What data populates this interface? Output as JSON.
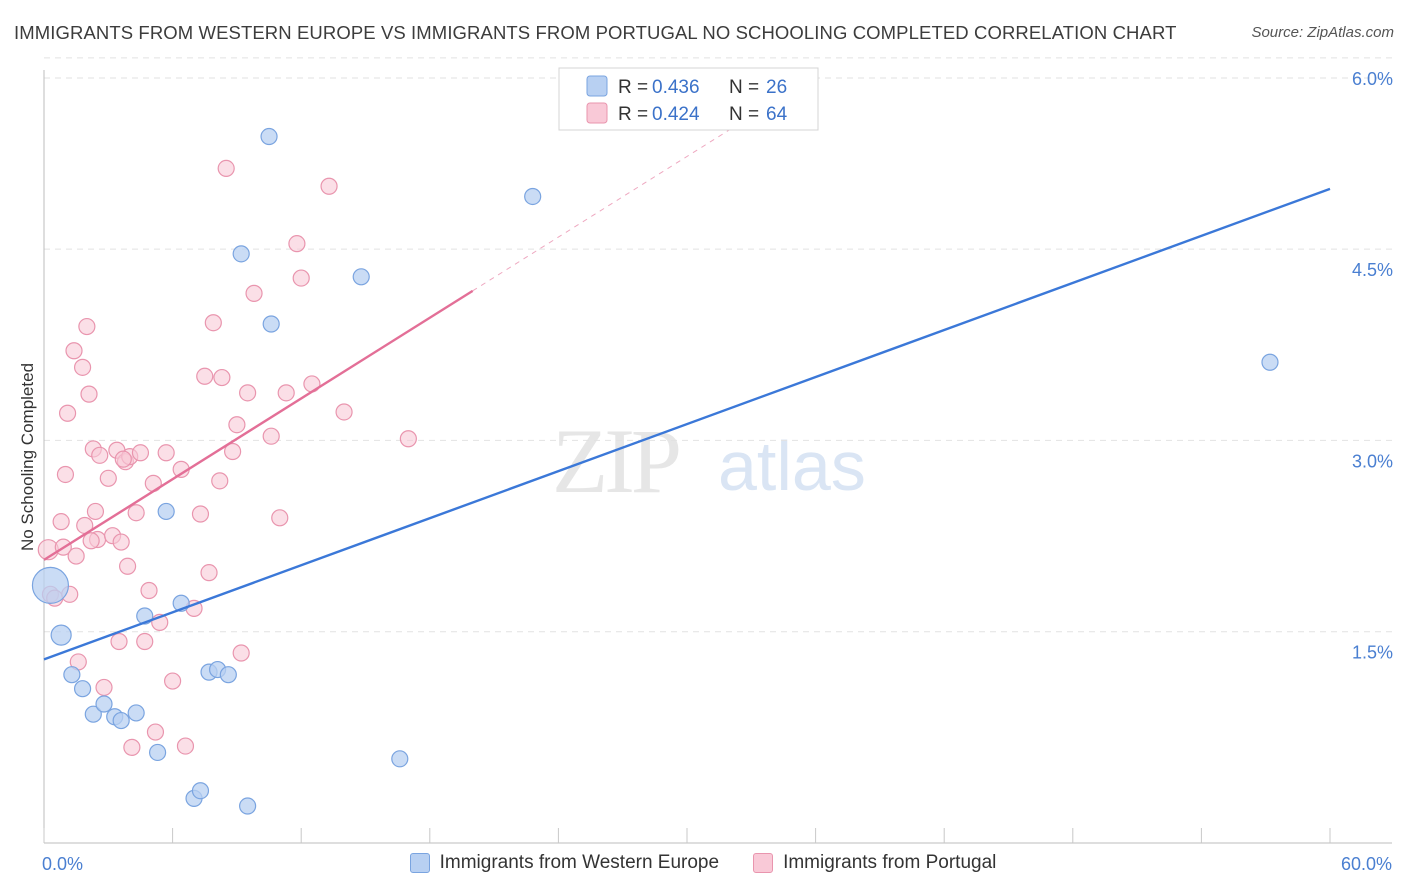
{
  "title": "IMMIGRANTS FROM WESTERN EUROPE VS IMMIGRANTS FROM PORTUGAL NO SCHOOLING COMPLETED CORRELATION CHART",
  "source": "Source: ZipAtlas.com",
  "watermark": {
    "zip": "ZIP",
    "atlas": "atlas"
  },
  "colors": {
    "blue": "#3b78d8",
    "pink": "#e36f97",
    "blue_fill": "#b8d0f2",
    "pink_fill": "#f9c9d7"
  },
  "legend": {
    "r_label": "R = ",
    "n_label": "N = ",
    "series": [
      {
        "r": "0.436",
        "n": "26"
      },
      {
        "r": "0.424",
        "n": "64"
      }
    ]
  },
  "chart_data": {
    "type": "scatter",
    "title": "IMMIGRANTS FROM WESTERN EUROPE VS IMMIGRANTS FROM PORTUGAL NO SCHOOLING COMPLETED CORRELATION CHART",
    "xlabel": "",
    "ylabel": "No Schooling Completed",
    "xlim": [
      0,
      60
    ],
    "ylim": [
      0,
      6.25
    ],
    "x_tick_labels": [
      "0.0%",
      "60.0%"
    ],
    "y_ticks": [
      {
        "value": 1.5,
        "label": "1.5%"
      },
      {
        "value": 3.0,
        "label": "3.0%"
      },
      {
        "value": 4.5,
        "label": "4.5%"
      },
      {
        "value": 6.0,
        "label": "6.0%"
      }
    ],
    "series": [
      {
        "name": "Immigrants from Western Europe",
        "color": "#3b78d8",
        "trend": {
          "x0": 0,
          "y0": 1.44,
          "x1": 60,
          "y1": 5.13,
          "dashed_to": null
        },
        "points": [
          [
            0.3,
            2.02,
            18
          ],
          [
            0.8,
            1.63,
            10
          ],
          [
            1.3,
            1.32,
            8
          ],
          [
            1.8,
            1.21,
            8
          ],
          [
            2.3,
            1.01,
            8
          ],
          [
            2.8,
            1.09,
            8
          ],
          [
            3.3,
            0.99,
            8
          ],
          [
            3.6,
            0.96,
            8
          ],
          [
            4.3,
            1.02,
            8
          ],
          [
            4.7,
            1.78,
            8
          ],
          [
            5.3,
            0.71,
            8
          ],
          [
            5.7,
            2.6,
            8
          ],
          [
            6.4,
            1.88,
            8
          ],
          [
            7.0,
            0.35,
            8
          ],
          [
            7.3,
            0.41,
            8
          ],
          [
            7.7,
            1.34,
            8
          ],
          [
            8.1,
            1.36,
            8
          ],
          [
            8.6,
            1.32,
            8
          ],
          [
            9.2,
            4.62,
            8
          ],
          [
            9.5,
            0.29,
            8
          ],
          [
            10.5,
            5.54,
            8
          ],
          [
            10.6,
            4.07,
            8
          ],
          [
            14.8,
            4.44,
            8
          ],
          [
            16.6,
            0.66,
            8
          ],
          [
            22.8,
            5.07,
            8
          ],
          [
            57.2,
            3.77,
            8
          ]
        ]
      },
      {
        "name": "Immigrants from Portugal",
        "color": "#e36f97",
        "trend": {
          "x0": 0,
          "y0": 2.22,
          "x1": 20,
          "y1": 4.33,
          "dashed_to": {
            "x": 33,
            "y": 5.7
          }
        },
        "points": [
          [
            0.2,
            2.3,
            10
          ],
          [
            0.3,
            1.95,
            8
          ],
          [
            0.5,
            1.92,
            8
          ],
          [
            0.8,
            2.52,
            8
          ],
          [
            0.9,
            2.32,
            8
          ],
          [
            1.0,
            2.89,
            8
          ],
          [
            1.1,
            3.37,
            8
          ],
          [
            1.2,
            1.95,
            8
          ],
          [
            1.4,
            3.86,
            8
          ],
          [
            1.5,
            2.25,
            8
          ],
          [
            1.6,
            1.42,
            8
          ],
          [
            1.8,
            3.73,
            8
          ],
          [
            1.9,
            2.49,
            8
          ],
          [
            2.0,
            4.05,
            8
          ],
          [
            2.1,
            3.52,
            8
          ],
          [
            2.3,
            3.09,
            8
          ],
          [
            2.4,
            2.6,
            8
          ],
          [
            2.5,
            2.38,
            8
          ],
          [
            2.6,
            3.04,
            8
          ],
          [
            2.8,
            1.22,
            8
          ],
          [
            3.0,
            2.86,
            8
          ],
          [
            3.2,
            2.41,
            8
          ],
          [
            3.4,
            3.08,
            8
          ],
          [
            3.5,
            1.58,
            8
          ],
          [
            3.6,
            2.36,
            8
          ],
          [
            3.8,
            2.99,
            8
          ],
          [
            3.9,
            2.17,
            8
          ],
          [
            4.0,
            3.03,
            8
          ],
          [
            4.1,
            0.75,
            8
          ],
          [
            4.3,
            2.59,
            8
          ],
          [
            4.5,
            3.06,
            8
          ],
          [
            4.7,
            1.58,
            8
          ],
          [
            4.9,
            1.98,
            8
          ],
          [
            5.1,
            2.82,
            8
          ],
          [
            5.2,
            0.87,
            8
          ],
          [
            5.4,
            1.73,
            8
          ],
          [
            5.7,
            3.06,
            8
          ],
          [
            6.0,
            1.27,
            8
          ],
          [
            6.4,
            2.93,
            8
          ],
          [
            6.6,
            0.76,
            8
          ],
          [
            7.0,
            1.84,
            8
          ],
          [
            7.3,
            2.58,
            8
          ],
          [
            7.5,
            3.66,
            8
          ],
          [
            7.7,
            2.12,
            8
          ],
          [
            7.9,
            4.08,
            8
          ],
          [
            8.2,
            2.84,
            8
          ],
          [
            8.3,
            3.65,
            8
          ],
          [
            8.5,
            5.29,
            8
          ],
          [
            8.8,
            3.07,
            8
          ],
          [
            9.0,
            3.28,
            8
          ],
          [
            9.2,
            1.49,
            8
          ],
          [
            9.5,
            3.53,
            8
          ],
          [
            9.8,
            4.31,
            8
          ],
          [
            10.6,
            3.19,
            8
          ],
          [
            11.0,
            2.55,
            8
          ],
          [
            11.3,
            3.53,
            8
          ],
          [
            11.8,
            4.7,
            8
          ],
          [
            12.0,
            4.43,
            8
          ],
          [
            12.5,
            3.6,
            8
          ],
          [
            13.3,
            5.15,
            8
          ],
          [
            14.0,
            3.38,
            8
          ],
          [
            17.0,
            3.17,
            8
          ],
          [
            2.2,
            2.37,
            8
          ],
          [
            3.7,
            3.01,
            8
          ]
        ]
      }
    ]
  },
  "bottom_legend": [
    "Immigrants from Western Europe",
    "Immigrants from Portugal"
  ]
}
